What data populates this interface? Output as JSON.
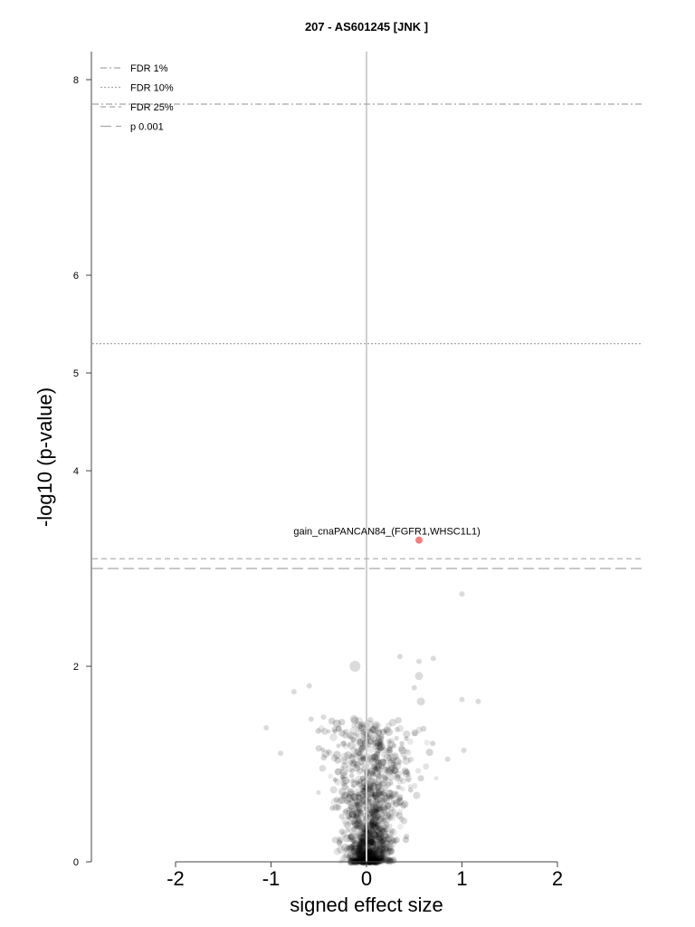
{
  "chart_data": {
    "type": "scatter",
    "title": "207 - AS601245 [JNK ]",
    "xlabel": "signed effect size",
    "ylabel": "-log10 (p-value)",
    "xlim": [
      -2.0,
      2.0
    ],
    "ylim": [
      0,
      8.3
    ],
    "x_ticks": [
      -2,
      -1,
      0,
      1,
      2
    ],
    "x_tick_labels": [
      "-2",
      "-1",
      "0",
      "1",
      "2"
    ],
    "y_ticks": [
      0,
      2,
      4,
      5,
      6,
      8
    ],
    "y_tick_labels": [
      "0",
      "2",
      "4",
      "5",
      "6",
      "8"
    ],
    "grid": false,
    "zero_line": 0,
    "legend": {
      "placement": "top-left",
      "entries": [
        {
          "label": "FDR 1%",
          "line_style": "dash-dot"
        },
        {
          "label": "FDR 10%",
          "line_style": "dotted"
        },
        {
          "label": "FDR 25%",
          "line_style": "dashed"
        },
        {
          "label": "p 0.001",
          "line_style": "long-dashed"
        }
      ]
    },
    "threshold_lines": [
      {
        "name": "FDR 1%",
        "y": 7.75,
        "style": "dash-dot"
      },
      {
        "name": "FDR 10%",
        "y": 5.3,
        "style": "dotted"
      },
      {
        "name": "FDR 25%",
        "y": 3.1,
        "style": "dashed"
      },
      {
        "name": "p 0.001",
        "y": 3.0,
        "style": "long-dashed"
      }
    ],
    "highlight": {
      "label": "gain_cnaPANCAN84_(FGFR1,WHSC1L1)",
      "x": 0.55,
      "y": 3.29,
      "color": "#f08080"
    },
    "notable_points": [
      {
        "x": 1.0,
        "y": 2.74,
        "size": "small"
      },
      {
        "x": -0.12,
        "y": 2.0,
        "size": "large"
      },
      {
        "x": -0.13,
        "y": 1.46,
        "size": "medium"
      },
      {
        "x": 0.35,
        "y": 2.1,
        "size": "small"
      },
      {
        "x": 0.55,
        "y": 2.05,
        "size": "small"
      },
      {
        "x": 0.7,
        "y": 2.08,
        "size": "small"
      },
      {
        "x": 0.55,
        "y": 1.9,
        "size": "medium"
      },
      {
        "x": 0.5,
        "y": 1.78,
        "size": "small"
      },
      {
        "x": 1.0,
        "y": 1.66,
        "size": "small"
      },
      {
        "x": 1.17,
        "y": 1.64,
        "size": "small"
      },
      {
        "x": 0.57,
        "y": 1.64,
        "size": "medium"
      },
      {
        "x": -0.6,
        "y": 1.8,
        "size": "small"
      },
      {
        "x": -0.76,
        "y": 1.74,
        "size": "small"
      },
      {
        "x": -1.05,
        "y": 1.37,
        "size": "small"
      },
      {
        "x": -0.45,
        "y": 1.48,
        "size": "small"
      },
      {
        "x": -0.58,
        "y": 1.46,
        "size": "small"
      },
      {
        "x": 1.02,
        "y": 1.14,
        "size": "small"
      },
      {
        "x": 0.85,
        "y": 1.05,
        "size": "small"
      },
      {
        "x": -0.9,
        "y": 1.11,
        "size": "small"
      }
    ],
    "point_cloud": {
      "note": "dense cluster of grey points near x = 0, y from 0 to about 1.5",
      "color": "#000000"
    }
  }
}
